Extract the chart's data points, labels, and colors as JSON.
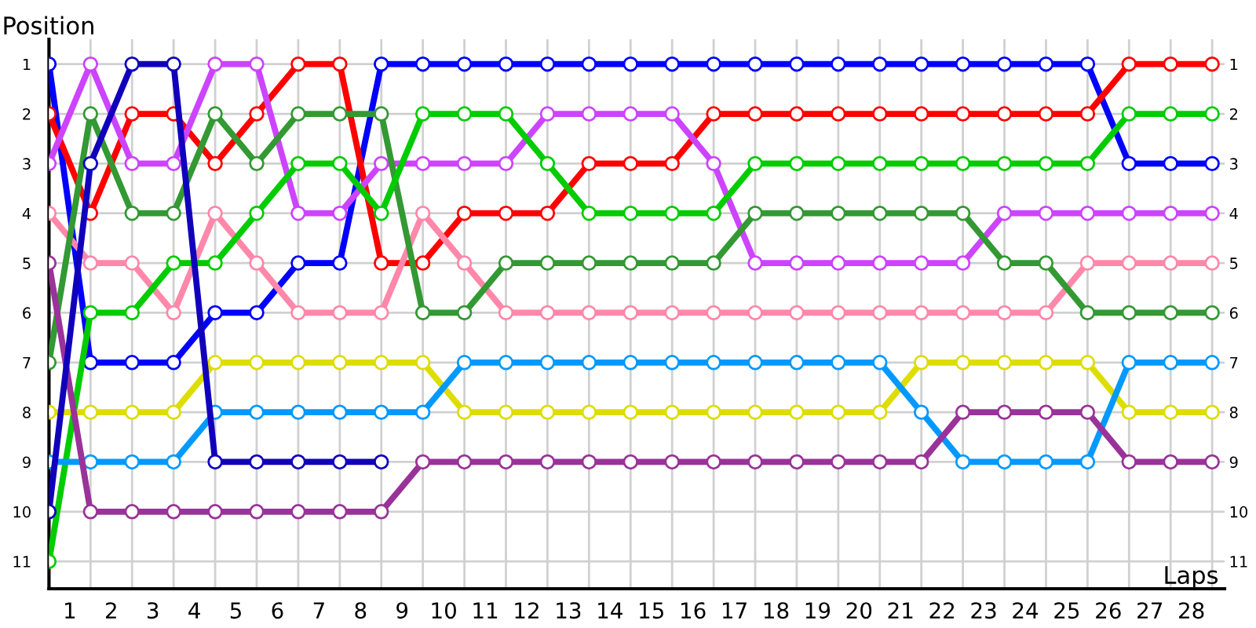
{
  "chart_data": {
    "type": "line",
    "xlabel": "Laps",
    "ylabel": "Position",
    "x": [
      0,
      1,
      2,
      3,
      4,
      5,
      6,
      7,
      8,
      9,
      10,
      11,
      12,
      13,
      14,
      15,
      16,
      17,
      18,
      19,
      20,
      21,
      22,
      23,
      24,
      25,
      26,
      27,
      28
    ],
    "series": [
      {
        "color": "#0000ff",
        "values": [
          1,
          7,
          7,
          7,
          6,
          6,
          5,
          5,
          1,
          1,
          1,
          1,
          1,
          1,
          1,
          1,
          1,
          1,
          1,
          1,
          1,
          1,
          1,
          1,
          1,
          1,
          3,
          3,
          3
        ]
      },
      {
        "color": "#ff0000",
        "values": [
          2,
          4,
          2,
          2,
          3,
          2,
          1,
          1,
          5,
          5,
          4,
          4,
          4,
          3,
          3,
          3,
          2,
          2,
          2,
          2,
          2,
          2,
          2,
          2,
          2,
          2,
          1,
          1,
          1
        ]
      },
      {
        "color": "#cc44ff",
        "values": [
          3,
          1,
          3,
          3,
          1,
          1,
          4,
          4,
          3,
          3,
          3,
          3,
          2,
          2,
          2,
          2,
          3,
          5,
          5,
          5,
          5,
          5,
          5,
          4,
          4,
          4,
          4,
          4,
          4
        ]
      },
      {
        "color": "#ff88aa",
        "values": [
          4,
          5,
          5,
          6,
          4,
          5,
          6,
          6,
          6,
          4,
          5,
          6,
          6,
          6,
          6,
          6,
          6,
          6,
          6,
          6,
          6,
          6,
          6,
          6,
          6,
          5,
          5,
          5,
          5
        ]
      },
      {
        "color": "#339933",
        "values": [
          7,
          2,
          4,
          4,
          2,
          3,
          2,
          2,
          2,
          6,
          6,
          5,
          5,
          5,
          5,
          5,
          5,
          4,
          4,
          4,
          4,
          4,
          4,
          5,
          5,
          6,
          6,
          6,
          6
        ]
      },
      {
        "color": "#00cc00",
        "values": [
          11,
          6,
          6,
          5,
          5,
          4,
          3,
          3,
          4,
          2,
          2,
          2,
          3,
          4,
          4,
          4,
          4,
          3,
          3,
          3,
          3,
          3,
          3,
          3,
          3,
          3,
          2,
          2,
          2
        ]
      },
      {
        "color": "#dddd00",
        "values": [
          8,
          8,
          8,
          8,
          7,
          7,
          7,
          7,
          7,
          7,
          8,
          8,
          8,
          8,
          8,
          8,
          8,
          8,
          8,
          8,
          8,
          7,
          7,
          7,
          7,
          7,
          8,
          8,
          8
        ]
      },
      {
        "color": "#0099ff",
        "values": [
          9,
          9,
          9,
          9,
          8,
          8,
          8,
          8,
          8,
          8,
          7,
          7,
          7,
          7,
          7,
          7,
          7,
          7,
          7,
          7,
          7,
          8,
          9,
          9,
          9,
          9,
          7,
          7,
          7
        ]
      },
      {
        "color": "#993399",
        "values": [
          5,
          10,
          10,
          10,
          10,
          10,
          10,
          10,
          10,
          9,
          9,
          9,
          9,
          9,
          9,
          9,
          9,
          9,
          9,
          9,
          9,
          9,
          8,
          8,
          8,
          8,
          9,
          9,
          9
        ]
      },
      {
        "color": "#1100bb",
        "values": [
          10,
          3,
          1,
          1,
          9,
          9,
          9,
          9,
          9,
          null,
          null,
          null,
          null,
          null,
          null,
          null,
          null,
          null,
          null,
          null,
          null,
          null,
          null,
          null,
          null,
          null,
          null,
          null,
          null
        ]
      }
    ],
    "xlim": [
      0,
      28.3
    ],
    "xticks": [
      {
        "value": 0,
        "label": null
      },
      {
        "value": 1,
        "label": null
      },
      {
        "value": 2,
        "label": null
      },
      {
        "value": 3,
        "label": null
      },
      {
        "value": 4,
        "label": null
      },
      {
        "value": 5,
        "label": null
      },
      {
        "value": 6,
        "label": null
      },
      {
        "value": 7,
        "label": null
      },
      {
        "value": 8,
        "label": null
      },
      {
        "value": 9,
        "label": null
      },
      {
        "value": 10,
        "label": null
      },
      {
        "value": 11,
        "label": null
      },
      {
        "value": 12,
        "label": null
      },
      {
        "value": 13,
        "label": null
      },
      {
        "value": 14,
        "label": null
      },
      {
        "value": 15,
        "label": null
      },
      {
        "value": 16,
        "label": null
      },
      {
        "value": 17,
        "label": null
      },
      {
        "value": 18,
        "label": null
      },
      {
        "value": 19,
        "label": null
      },
      {
        "value": 20,
        "label": null
      },
      {
        "value": 21,
        "label": null
      },
      {
        "value": 22,
        "label": null
      },
      {
        "value": 23,
        "label": null
      },
      {
        "value": 24,
        "label": null
      },
      {
        "value": 25,
        "label": null
      },
      {
        "value": 26,
        "label": null
      },
      {
        "value": 27,
        "label": null
      },
      {
        "value": 28,
        "label": null
      },
      {
        "value": 0.5,
        "label": "1"
      },
      {
        "value": 1.5,
        "label": "2"
      },
      {
        "value": 2.5,
        "label": "3"
      },
      {
        "value": 3.5,
        "label": "4"
      },
      {
        "value": 4.5,
        "label": "5"
      },
      {
        "value": 5.5,
        "label": "6"
      },
      {
        "value": 6.5,
        "label": "7"
      },
      {
        "value": 7.5,
        "label": "8"
      },
      {
        "value": 8.5,
        "label": "9"
      },
      {
        "value": 9.5,
        "label": "10"
      },
      {
        "value": 10.5,
        "label": "11"
      },
      {
        "value": 11.5,
        "label": "12"
      },
      {
        "value": 12.5,
        "label": "13"
      },
      {
        "value": 13.5,
        "label": "14"
      },
      {
        "value": 14.5,
        "label": "15"
      },
      {
        "value": 15.5,
        "label": "16"
      },
      {
        "value": 16.5,
        "label": "17"
      },
      {
        "value": 17.5,
        "label": "18"
      },
      {
        "value": 18.5,
        "label": "19"
      },
      {
        "value": 19.5,
        "label": "20"
      },
      {
        "value": 20.5,
        "label": "21"
      },
      {
        "value": 21.5,
        "label": "22"
      },
      {
        "value": 22.5,
        "label": "23"
      },
      {
        "value": 23.5,
        "label": "24"
      },
      {
        "value": 24.5,
        "label": "25"
      },
      {
        "value": 25.5,
        "label": "26"
      },
      {
        "value": 26.5,
        "label": "27"
      },
      {
        "value": 27.5,
        "label": "28"
      }
    ],
    "ylim": [
      11.55,
      0.5
    ],
    "yticks": [
      1,
      2,
      3,
      4,
      5,
      6,
      7,
      8,
      9,
      10,
      11
    ],
    "y2lim": [
      11.55,
      0.5
    ],
    "y2ticks": [
      1,
      2,
      3,
      4,
      5,
      6,
      7,
      8,
      9,
      10,
      11
    ],
    "grid": true,
    "marker": "circle",
    "line_style": "solid"
  }
}
